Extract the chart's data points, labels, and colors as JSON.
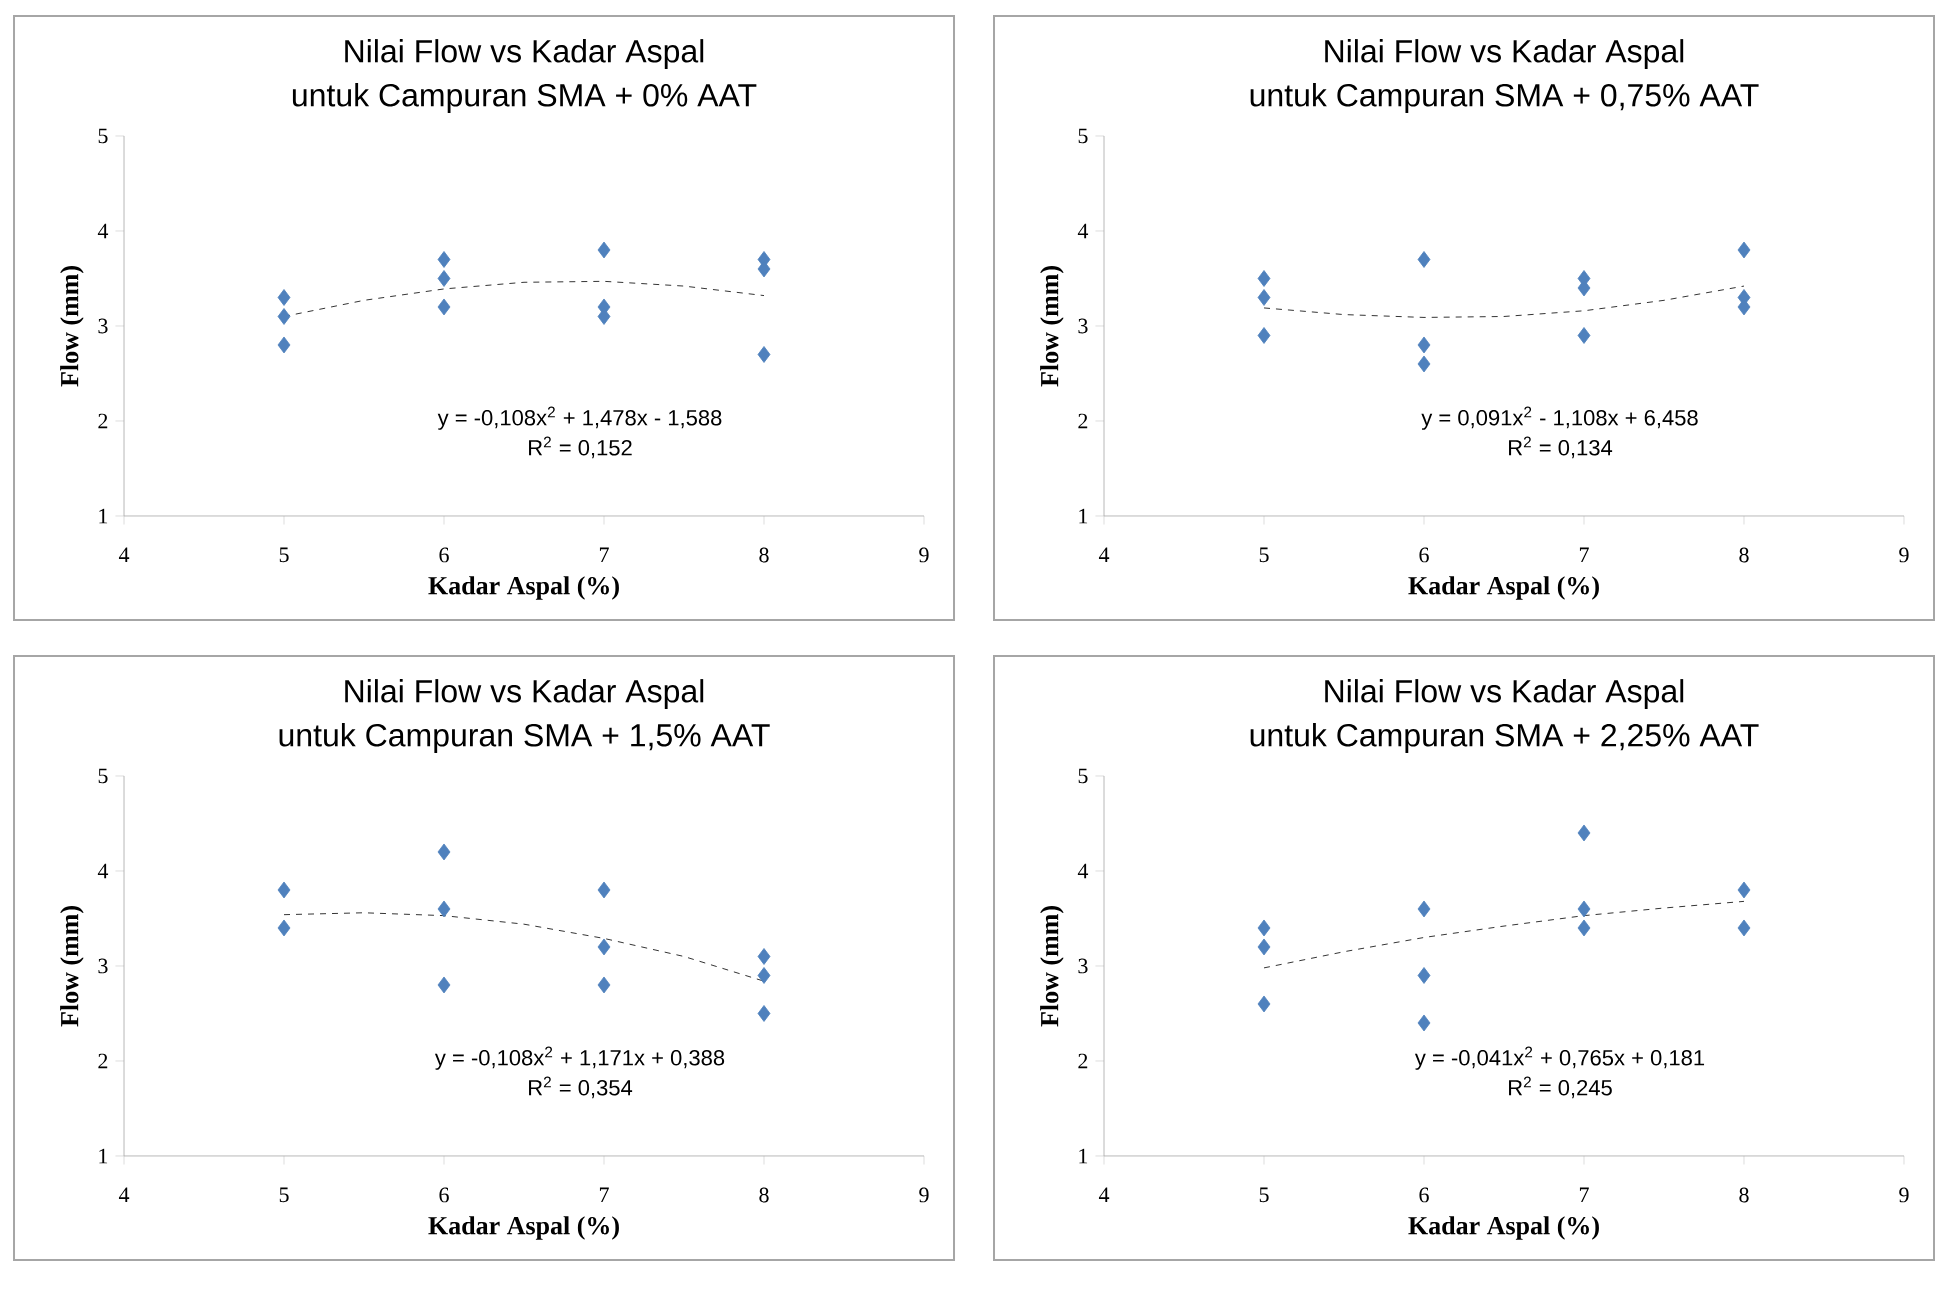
{
  "chart_data": [
    {
      "type": "scatter",
      "title": "Nilai Flow vs Kadar Aspal",
      "subtitle": "untuk Campuran SMA + 0% AAT",
      "xlabel": "Kadar Aspal (%)",
      "ylabel": "Flow (mm)",
      "xlim": [
        4,
        9
      ],
      "ylim": [
        1,
        5
      ],
      "xticks": [
        4,
        5,
        6,
        7,
        8,
        9
      ],
      "yticks": [
        1,
        2,
        3,
        4,
        5
      ],
      "marker": "diamond",
      "annotations": [
        "y = -0,108x$^{2}$ + 1,478x - 1,588",
        "R$^{2}$ = 0,152"
      ],
      "series": [
        {
          "type": "scatter",
          "color": "#4f81bd",
          "x": [
            5,
            5,
            5,
            6,
            6,
            6,
            7,
            7,
            7,
            8,
            8,
            8
          ],
          "values": [
            3.3,
            3.1,
            2.8,
            3.7,
            3.5,
            3.2,
            3.8,
            3.2,
            3.1,
            3.7,
            3.6,
            2.7
          ]
        },
        {
          "type": "line",
          "color": "#000000",
          "marker": "none",
          "line_style": "dashed",
          "x": [
            5,
            5.5,
            6,
            6.5,
            7,
            7.5,
            8
          ],
          "values": [
            3.1,
            3.27,
            3.39,
            3.46,
            3.47,
            3.42,
            3.32
          ]
        }
      ]
    },
    {
      "type": "scatter",
      "title": "Nilai Flow vs Kadar Aspal",
      "subtitle": "untuk Campuran SMA + 0,75% AAT",
      "xlabel": "Kadar Aspal (%)",
      "ylabel": "Flow (mm)",
      "xlim": [
        4,
        9
      ],
      "ylim": [
        1,
        5
      ],
      "xticks": [
        4,
        5,
        6,
        7,
        8,
        9
      ],
      "yticks": [
        1,
        2,
        3,
        4,
        5
      ],
      "marker": "diamond",
      "annotations": [
        "y = 0,091x$^{2}$ - 1,108x + 6,458",
        "R$^{2}$ = 0,134"
      ],
      "series": [
        {
          "type": "scatter",
          "color": "#4f81bd",
          "x": [
            5,
            5,
            5,
            6,
            6,
            6,
            7,
            7,
            7,
            8,
            8,
            8
          ],
          "values": [
            3.5,
            3.3,
            2.9,
            3.7,
            2.8,
            2.6,
            3.5,
            3.4,
            2.9,
            3.8,
            3.3,
            3.2
          ]
        },
        {
          "type": "line",
          "color": "#000000",
          "marker": "none",
          "line_style": "dashed",
          "x": [
            5,
            5.5,
            6,
            6.5,
            7,
            7.5,
            8
          ],
          "values": [
            3.19,
            3.12,
            3.09,
            3.1,
            3.16,
            3.27,
            3.42
          ]
        }
      ]
    },
    {
      "type": "scatter",
      "title": "Nilai Flow vs Kadar Aspal",
      "subtitle": "untuk Campuran SMA + 1,5% AAT",
      "xlabel": "Kadar Aspal (%)",
      "ylabel": "Flow (mm)",
      "xlim": [
        4,
        9
      ],
      "ylim": [
        1,
        5
      ],
      "xticks": [
        4,
        5,
        6,
        7,
        8,
        9
      ],
      "yticks": [
        1,
        2,
        3,
        4,
        5
      ],
      "marker": "diamond",
      "annotations": [
        "y = -0,108x$^{2}$ + 1,171x + 0,388",
        "R$^{2}$ = 0,354"
      ],
      "series": [
        {
          "type": "scatter",
          "color": "#4f81bd",
          "x": [
            5,
            5,
            6,
            6,
            6,
            7,
            7,
            7,
            8,
            8,
            8
          ],
          "values": [
            3.8,
            3.4,
            4.2,
            3.6,
            2.8,
            3.8,
            3.2,
            2.8,
            3.1,
            2.9,
            2.5
          ]
        },
        {
          "type": "line",
          "color": "#000000",
          "marker": "none",
          "line_style": "dashed",
          "x": [
            5,
            5.5,
            6,
            6.5,
            7,
            7.5,
            8
          ],
          "values": [
            3.54,
            3.56,
            3.53,
            3.44,
            3.29,
            3.1,
            2.84
          ]
        }
      ]
    },
    {
      "type": "scatter",
      "title": "Nilai Flow vs Kadar Aspal",
      "subtitle": "untuk Campuran SMA + 2,25% AAT",
      "xlabel": "Kadar Aspal (%)",
      "ylabel": "Flow (mm)",
      "xlim": [
        4,
        9
      ],
      "ylim": [
        1,
        5
      ],
      "xticks": [
        4,
        5,
        6,
        7,
        8,
        9
      ],
      "yticks": [
        1,
        2,
        3,
        4,
        5
      ],
      "marker": "diamond",
      "annotations": [
        "y = -0,041x$^{2}$ + 0,765x + 0,181",
        "R$^{2}$ = 0,245"
      ],
      "series": [
        {
          "type": "scatter",
          "color": "#4f81bd",
          "x": [
            5,
            5,
            5,
            6,
            6,
            6,
            7,
            7,
            7,
            8,
            8
          ],
          "values": [
            3.4,
            3.2,
            2.6,
            3.6,
            2.9,
            2.4,
            4.4,
            3.6,
            3.4,
            3.8,
            3.4
          ]
        },
        {
          "type": "line",
          "color": "#000000",
          "marker": "none",
          "line_style": "dashed",
          "x": [
            5,
            5.5,
            6,
            6.5,
            7,
            7.5,
            8
          ],
          "values": [
            2.98,
            3.15,
            3.3,
            3.42,
            3.53,
            3.61,
            3.68
          ]
        }
      ]
    }
  ]
}
